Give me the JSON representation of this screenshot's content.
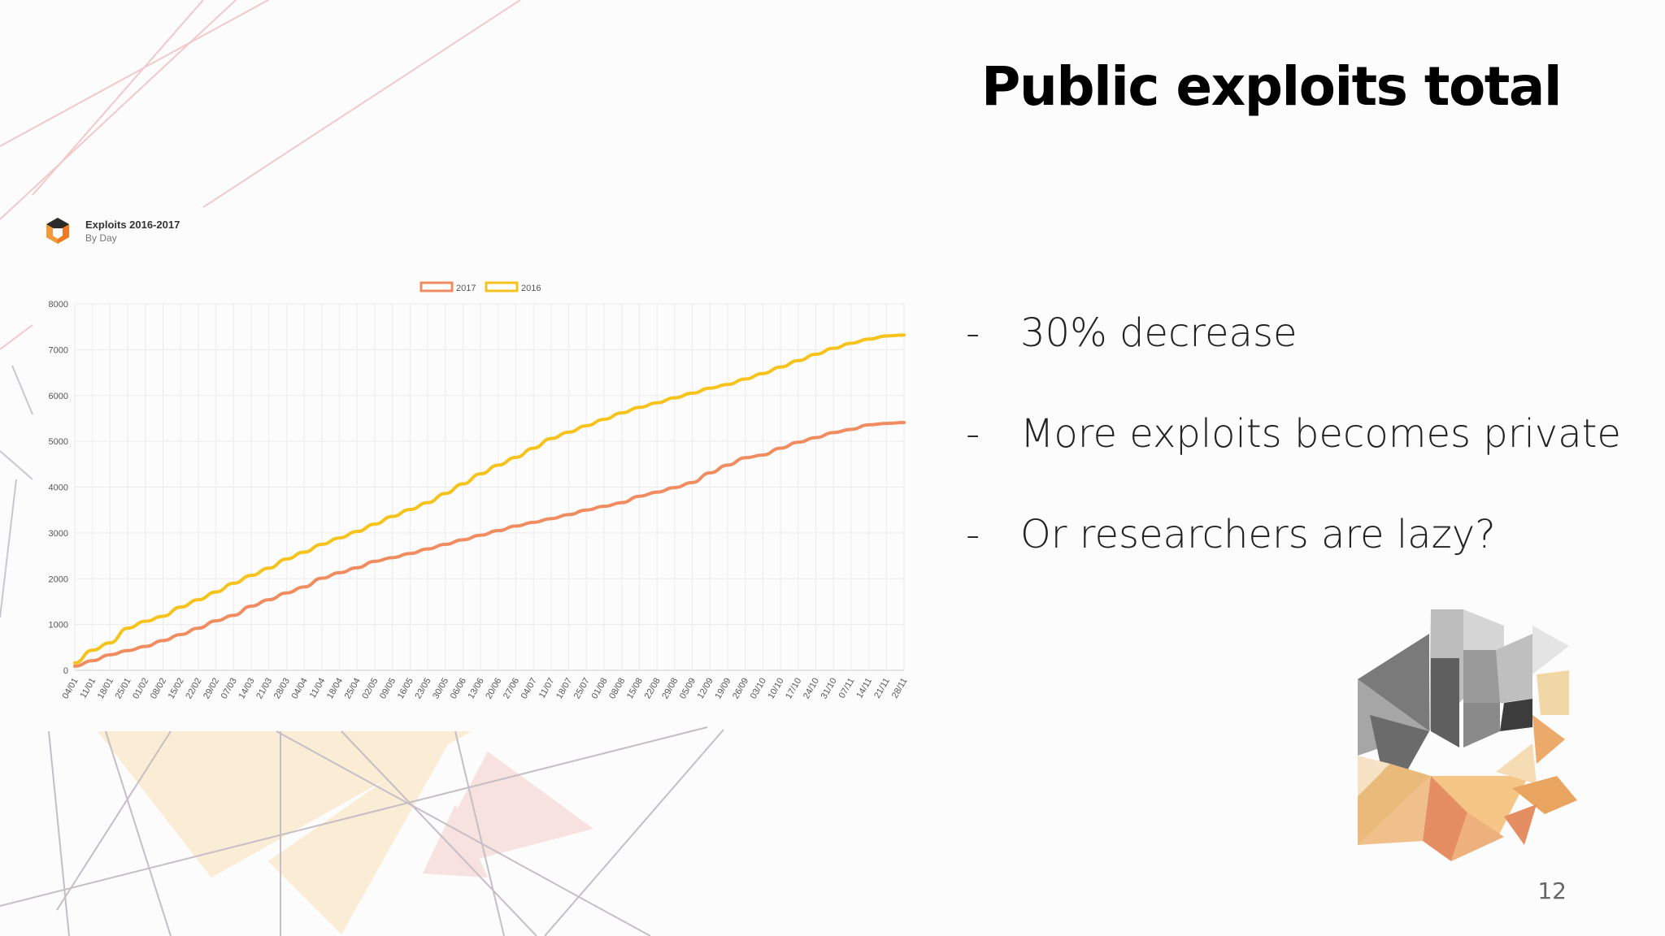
{
  "slide": {
    "title": "Public exploits total",
    "bullets": [
      {
        "dash": "-",
        "text": "30% decrease"
      },
      {
        "dash": "-",
        "text": "More exploits becomes private"
      },
      {
        "dash": "-",
        "text": "Or researchers are lazy?"
      }
    ],
    "page_number": "12"
  },
  "chart_header": {
    "title": "Exploits 2016-2017",
    "subtitle": "By Day"
  },
  "chart_data": {
    "type": "line",
    "title": "Exploits 2016-2017",
    "subtitle": "By Day",
    "xlabel": "",
    "ylabel": "",
    "ylim": [
      0,
      8000
    ],
    "yticks": [
      0,
      1000,
      2000,
      3000,
      4000,
      5000,
      6000,
      7000,
      8000
    ],
    "grid": true,
    "legend_position": "top-center",
    "x": [
      "04/01",
      "11/01",
      "18/01",
      "25/01",
      "01/02",
      "08/02",
      "15/02",
      "22/02",
      "29/02",
      "07/03",
      "14/03",
      "21/03",
      "28/03",
      "04/04",
      "11/04",
      "18/04",
      "25/04",
      "02/05",
      "09/05",
      "16/05",
      "23/05",
      "30/05",
      "06/06",
      "13/06",
      "20/06",
      "27/06",
      "04/07",
      "11/07",
      "18/07",
      "25/07",
      "01/08",
      "08/08",
      "15/08",
      "22/08",
      "29/08",
      "05/09",
      "12/09",
      "19/09",
      "26/09",
      "03/10",
      "10/10",
      "17/10",
      "24/10",
      "31/10",
      "07/11",
      "14/11",
      "21/11",
      "28/11"
    ],
    "series": [
      {
        "name": "2017",
        "color": "#f08c60",
        "values": [
          90,
          210,
          340,
          430,
          520,
          650,
          780,
          920,
          1080,
          1200,
          1400,
          1540,
          1690,
          1820,
          2010,
          2130,
          2240,
          2380,
          2460,
          2550,
          2650,
          2750,
          2850,
          2950,
          3050,
          3150,
          3230,
          3310,
          3400,
          3500,
          3580,
          3660,
          3800,
          3890,
          3990,
          4100,
          4310,
          4480,
          4640,
          4700,
          4850,
          4980,
          5080,
          5190,
          5260,
          5360,
          5390,
          5410
        ]
      },
      {
        "name": "2016",
        "color": "#f6c21c",
        "values": [
          160,
          440,
          600,
          920,
          1070,
          1180,
          1380,
          1540,
          1710,
          1900,
          2070,
          2230,
          2430,
          2580,
          2750,
          2890,
          3030,
          3190,
          3360,
          3510,
          3660,
          3860,
          4070,
          4290,
          4480,
          4650,
          4850,
          5060,
          5200,
          5340,
          5480,
          5620,
          5740,
          5840,
          5950,
          6050,
          6160,
          6240,
          6360,
          6480,
          6620,
          6760,
          6900,
          7030,
          7140,
          7230,
          7300,
          7320
        ]
      }
    ]
  },
  "colors": {
    "accent_orange": "#f08c60",
    "accent_yellow": "#f6c21c",
    "grid": "#ececec",
    "axis": "#cccccc"
  }
}
